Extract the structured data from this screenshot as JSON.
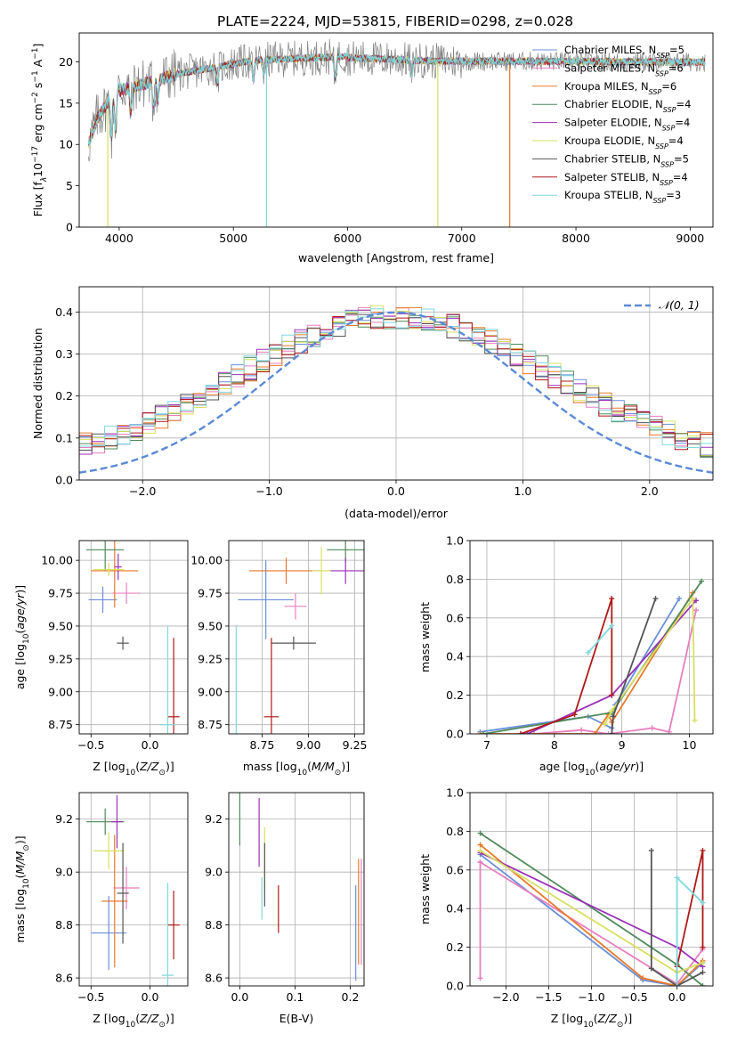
{
  "figure": {
    "title": "PLATE=2224, MJD=53815, FIBERID=0298, z=0.028"
  },
  "legend_entries": [
    {
      "label": "Chabrier MILES, N_SSP=5",
      "base": "Chabrier MILES, N",
      "sub": "SSP",
      "tail": "=5",
      "color": "#6a8fd8"
    },
    {
      "label": "Salpeter MILES, N_SSP=6",
      "base": "Salpeter MILES, N",
      "sub": "SSP",
      "tail": "=6",
      "color": "#e87fbf"
    },
    {
      "label": "Kroupa MILES, N_SSP=6",
      "base": "Kroupa MILES, N",
      "sub": "SSP",
      "tail": "=6",
      "color": "#e8792a"
    },
    {
      "label": "Chabrier ELODIE, N_SSP=4",
      "base": "Chabrier ELODIE, N",
      "sub": "SSP",
      "tail": "=4",
      "color": "#4f8a5a"
    },
    {
      "label": "Salpeter ELODIE, N_SSP=4",
      "base": "Salpeter ELODIE, N",
      "sub": "SSP",
      "tail": "=4",
      "color": "#9a32b8"
    },
    {
      "label": "Kroupa ELODIE, N_SSP=4",
      "base": "Kroupa ELODIE, N",
      "sub": "SSP",
      "tail": "=4",
      "color": "#d8e060"
    },
    {
      "label": "Chabrier STELIB, N_SSP=5",
      "base": "Chabrier STELIB, N",
      "sub": "SSP",
      "tail": "=5",
      "color": "#555555"
    },
    {
      "label": "Salpeter STELIB, N_SSP=4",
      "base": "Salpeter STELIB, N",
      "sub": "SSP",
      "tail": "=4",
      "color": "#b01818"
    },
    {
      "label": "Kroupa STELIB, N_SSP=3",
      "base": "Kroupa STELIB, N",
      "sub": "SSP",
      "tail": "=3",
      "color": "#7fd8dc"
    }
  ],
  "chart_data": [
    {
      "id": "spectrum",
      "type": "line",
      "xlabel": "wavelength [Angstrom, rest frame]",
      "ylabel": "Flux [f_λ 10^-17 erg cm^-2 s^-1 A^-1]",
      "ylabel_parts": {
        "a": "Flux [f",
        "b": "λ",
        "c": "10",
        "d": "−17",
        "e": " erg cm",
        "f": "−2",
        "g": " s",
        "h": "−1",
        "i": " A",
        "j": "−1",
        "k": "]"
      },
      "xlim": [
        3650,
        9200
      ],
      "ylim": [
        0,
        23.5
      ],
      "xticks": [
        4000,
        5000,
        6000,
        7000,
        8000,
        9000
      ],
      "yticks": [
        0,
        5,
        10,
        15,
        20
      ],
      "data_min_x": 3730,
      "data_max_x": 9130,
      "model_cutoffs": [
        {
          "series": 2,
          "x_end": 7420
        },
        {
          "series": 5,
          "x_end": 6790
        },
        {
          "series": 8,
          "x_end": 5290
        },
        {
          "series": 5,
          "x_end": 3900
        }
      ],
      "legend_position": "upper right",
      "grid": false
    },
    {
      "id": "residuals",
      "type": "histogram",
      "xlabel": "(data-model)/error",
      "ylabel": "Normed distribution",
      "xlim": [
        -2.5,
        2.5
      ],
      "ylim": [
        0,
        0.46
      ],
      "xticks": [
        -2,
        -1,
        0,
        1,
        2
      ],
      "yticks": [
        0.0,
        0.1,
        0.2,
        0.3,
        0.4
      ],
      "bin_width": 0.1,
      "gaussian": {
        "label": "𝒩(0, 1)",
        "mu": 0,
        "sigma": 1,
        "color": "#5b8ad6"
      },
      "legend_position": "upper right",
      "grid": true
    },
    {
      "id": "age_vs_Z",
      "type": "errorbar",
      "xlabel": "Z [log10(Z/Z⊙)]",
      "ylabel": "age  [log10(age/yr)]",
      "xlim": [
        -0.6,
        0.32
      ],
      "ylim": [
        8.68,
        10.15
      ],
      "xticks": [
        -0.5,
        0.0
      ],
      "yticks": [
        8.75,
        9.0,
        9.25,
        9.5,
        9.75,
        10.0
      ],
      "points": [
        {
          "x": -0.4,
          "y": 9.7,
          "xerr": 0.12,
          "yerr": 0.1,
          "series": 0
        },
        {
          "x": -0.2,
          "y": 9.75,
          "xerr": 0.12,
          "yerr": 0.08,
          "series": 1
        },
        {
          "x": -0.3,
          "y": 9.92,
          "xerr": 0.2,
          "yerr": 0.28,
          "series": 2
        },
        {
          "x": -0.38,
          "y": 10.08,
          "xerr": 0.16,
          "yerr": 0.16,
          "series": 3
        },
        {
          "x": -0.27,
          "y": 9.95,
          "xerr": 0.03,
          "yerr": 0.1,
          "series": 4
        },
        {
          "x": -0.35,
          "y": 9.93,
          "xerr": 0.13,
          "yerr": 0.05,
          "series": 5
        },
        {
          "x": -0.23,
          "y": 9.37,
          "xerr": 0.05,
          "yerr": 0.05,
          "series": 6
        },
        {
          "x": 0.2,
          "y": 8.81,
          "xerr": 0.05,
          "yerr": 0.6,
          "series": 7
        },
        {
          "x": 0.15,
          "y": 8.75,
          "xerr": 0.07,
          "yerr": 0.75,
          "series": 8
        }
      ],
      "grid": true
    },
    {
      "id": "age_vs_mass",
      "type": "errorbar",
      "xlabel": "mass [log10(M/M⊙)]",
      "ylabel": "",
      "xlim": [
        8.57,
        9.3
      ],
      "ylim": [
        8.68,
        10.15
      ],
      "xticks": [
        8.75,
        9.0,
        9.25
      ],
      "yticks": [
        8.75,
        9.0,
        9.25,
        9.5,
        9.75,
        10.0
      ],
      "points": [
        {
          "x": 8.77,
          "y": 9.7,
          "xerr": 0.15,
          "yerr": 0.3,
          "series": 0
        },
        {
          "x": 8.93,
          "y": 9.65,
          "xerr": 0.06,
          "yerr": 0.1,
          "series": 1
        },
        {
          "x": 8.88,
          "y": 9.92,
          "xerr": 0.2,
          "yerr": 0.1,
          "series": 2
        },
        {
          "x": 9.2,
          "y": 10.08,
          "xerr": 0.1,
          "yerr": 0.1,
          "series": 3
        },
        {
          "x": 9.2,
          "y": 9.92,
          "xerr": 0.1,
          "yerr": 0.1,
          "series": 4
        },
        {
          "x": 9.07,
          "y": 9.92,
          "xerr": 0.05,
          "yerr": 0.18,
          "series": 5
        },
        {
          "x": 8.92,
          "y": 9.37,
          "xerr": 0.12,
          "yerr": 0.05,
          "series": 6
        },
        {
          "x": 8.8,
          "y": 8.81,
          "xerr": 0.04,
          "yerr": 0.6,
          "series": 7
        },
        {
          "x": 8.61,
          "y": 8.75,
          "xerr": 0.0,
          "yerr": 0.75,
          "series": 8
        }
      ],
      "grid": true
    },
    {
      "id": "weight_vs_age",
      "type": "line",
      "xlabel": "age  [log10(age/yr)]",
      "ylabel": "mass weight",
      "xlim": [
        6.75,
        10.35
      ],
      "ylim": [
        0,
        1.0
      ],
      "xticks": [
        7,
        8,
        9,
        10
      ],
      "yticks": [
        0.0,
        0.2,
        0.4,
        0.6,
        0.8,
        1.0
      ],
      "series": [
        {
          "series": 0,
          "points": [
            [
              6.9,
              0.01
            ],
            [
              8.5,
              0.09
            ],
            [
              8.85,
              0.03
            ],
            [
              8.9,
              0.15
            ],
            [
              9.85,
              0.7
            ]
          ]
        },
        {
          "series": 1,
          "points": [
            [
              7.7,
              0.0
            ],
            [
              8.4,
              0.02
            ],
            [
              8.8,
              0.0
            ],
            [
              9.45,
              0.03
            ],
            [
              9.7,
              0.01
            ],
            [
              10.1,
              0.64
            ]
          ]
        },
        {
          "series": 2,
          "points": [
            [
              6.9,
              0.0
            ],
            [
              8.6,
              0.0
            ],
            [
              8.8,
              0.1
            ],
            [
              8.85,
              0.06
            ],
            [
              10.05,
              0.73
            ]
          ]
        },
        {
          "series": 3,
          "points": [
            [
              6.95,
              0.0
            ],
            [
              8.85,
              0.11
            ],
            [
              10.18,
              0.79
            ]
          ]
        },
        {
          "series": 4,
          "points": [
            [
              7.6,
              0.0
            ],
            [
              8.85,
              0.2
            ],
            [
              10.1,
              0.69
            ]
          ]
        },
        {
          "series": 5,
          "points": [
            [
              8.75,
              0.05
            ],
            [
              8.85,
              0.12
            ],
            [
              10.05,
              0.7
            ],
            [
              10.08,
              0.07
            ]
          ]
        },
        {
          "series": 6,
          "points": [
            [
              8.85,
              0.0
            ],
            [
              8.87,
              0.09
            ],
            [
              9.5,
              0.7
            ]
          ]
        },
        {
          "series": 7,
          "points": [
            [
              7.5,
              0.0
            ],
            [
              8.3,
              0.1
            ],
            [
              8.85,
              0.7
            ],
            [
              8.85,
              0.2
            ]
          ]
        },
        {
          "series": 8,
          "points": [
            [
              8.5,
              0.42
            ],
            [
              8.85,
              0.56
            ]
          ]
        }
      ],
      "grid": true
    },
    {
      "id": "mass_vs_Z",
      "type": "errorbar",
      "xlabel": "Z [log10(Z/Z⊙)]",
      "ylabel": "mass [log10(M/M⊙)]",
      "xlim": [
        -0.6,
        0.32
      ],
      "ylim": [
        8.57,
        9.3
      ],
      "xticks": [
        -0.5,
        0.0
      ],
      "yticks": [
        8.6,
        8.8,
        9.0,
        9.2
      ],
      "points": [
        {
          "x": -0.35,
          "y": 8.77,
          "xerr": 0.15,
          "yerr": 0.14,
          "series": 0
        },
        {
          "x": -0.2,
          "y": 8.94,
          "xerr": 0.11,
          "yerr": 0.08,
          "series": 1
        },
        {
          "x": -0.3,
          "y": 8.89,
          "xerr": 0.11,
          "yerr": 0.25,
          "series": 2
        },
        {
          "x": -0.38,
          "y": 9.19,
          "xerr": 0.16,
          "yerr": 0.05,
          "series": 3
        },
        {
          "x": -0.28,
          "y": 9.19,
          "xerr": 0.05,
          "yerr": 0.1,
          "series": 4
        },
        {
          "x": -0.35,
          "y": 9.08,
          "xerr": 0.13,
          "yerr": 0.07,
          "series": 5
        },
        {
          "x": -0.23,
          "y": 8.92,
          "xerr": 0.05,
          "yerr": 0.19,
          "series": 6
        },
        {
          "x": 0.2,
          "y": 8.8,
          "xerr": 0.05,
          "yerr": 0.13,
          "series": 7
        },
        {
          "x": 0.15,
          "y": 8.61,
          "xerr": 0.05,
          "yerr": 0.35,
          "series": 8
        }
      ],
      "grid": true
    },
    {
      "id": "mass_vs_EBV",
      "type": "errorbar",
      "xlabel": "E(B-V)",
      "ylabel": "",
      "xlim": [
        -0.02,
        0.225
      ],
      "ylim": [
        8.57,
        9.3
      ],
      "xticks": [
        0.0,
        0.1,
        0.2
      ],
      "yticks": [
        8.6,
        8.8,
        9.0,
        9.2
      ],
      "points": [
        {
          "x": 0.21,
          "y": 8.77,
          "xerr": 0.0,
          "yerr": 0.18,
          "series": 0
        },
        {
          "x": 0.22,
          "y": 8.85,
          "xerr": 0.0,
          "yerr": 0.2,
          "series": 1
        },
        {
          "x": 0.215,
          "y": 8.85,
          "xerr": 0.0,
          "yerr": 0.2,
          "series": 2
        },
        {
          "x": 0.0,
          "y": 9.2,
          "xerr": 0.0,
          "yerr": 0.1,
          "series": 3
        },
        {
          "x": 0.035,
          "y": 9.15,
          "xerr": 0.0,
          "yerr": 0.13,
          "series": 4
        },
        {
          "x": 0.045,
          "y": 9.05,
          "xerr": 0.0,
          "yerr": 0.12,
          "series": 5
        },
        {
          "x": 0.045,
          "y": 8.99,
          "xerr": 0.0,
          "yerr": 0.12,
          "series": 6
        },
        {
          "x": 0.07,
          "y": 8.86,
          "xerr": 0.0,
          "yerr": 0.09,
          "series": 7
        },
        {
          "x": 0.04,
          "y": 8.9,
          "xerr": 0.0,
          "yerr": 0.08,
          "series": 8
        }
      ],
      "grid": true
    },
    {
      "id": "weight_vs_Z",
      "type": "line",
      "xlabel": "Z [log10(Z/Z⊙)]",
      "ylabel": "mass weight",
      "xlim": [
        -2.42,
        0.42
      ],
      "ylim": [
        0,
        1.0
      ],
      "xticks": [
        -2.0,
        -1.5,
        -1.0,
        -0.5,
        0.0
      ],
      "yticks": [
        0.0,
        0.2,
        0.4,
        0.6,
        0.8,
        1.0
      ],
      "series": [
        {
          "series": 0,
          "points": [
            [
              -2.3,
              0.68
            ],
            [
              -0.4,
              0.03
            ],
            [
              0.0,
              0.0
            ],
            [
              0.3,
              0.12
            ]
          ]
        },
        {
          "series": 1,
          "points": [
            [
              -2.3,
              0.64
            ],
            [
              -2.3,
              0.04
            ],
            [
              -2.3,
              0.64
            ],
            [
              0.0,
              0.01
            ],
            [
              0.3,
              0.19
            ]
          ]
        },
        {
          "series": 2,
          "points": [
            [
              -2.3,
              0.73
            ],
            [
              -0.4,
              0.04
            ],
            [
              0.0,
              0.0
            ],
            [
              0.3,
              0.13
            ]
          ]
        },
        {
          "series": 3,
          "points": [
            [
              -2.3,
              0.79
            ],
            [
              0.0,
              0.11
            ],
            [
              0.3,
              0.0
            ]
          ]
        },
        {
          "series": 4,
          "points": [
            [
              -2.3,
              0.69
            ],
            [
              0.0,
              0.2
            ],
            [
              0.3,
              0.1
            ]
          ]
        },
        {
          "series": 5,
          "points": [
            [
              -2.3,
              0.7
            ],
            [
              0.0,
              0.07
            ],
            [
              0.3,
              0.12
            ]
          ]
        },
        {
          "series": 6,
          "points": [
            [
              -0.3,
              0.7
            ],
            [
              -0.3,
              0.09
            ],
            [
              0.0,
              0.0
            ],
            [
              0.3,
              0.07
            ]
          ]
        },
        {
          "series": 7,
          "points": [
            [
              0.0,
              0.0
            ],
            [
              0.0,
              0.1
            ],
            [
              0.3,
              0.7
            ],
            [
              0.3,
              0.2
            ]
          ]
        },
        {
          "series": 8,
          "points": [
            [
              0.0,
              0.0
            ],
            [
              0.0,
              0.56
            ],
            [
              0.3,
              0.43
            ]
          ]
        }
      ],
      "grid": true
    }
  ]
}
